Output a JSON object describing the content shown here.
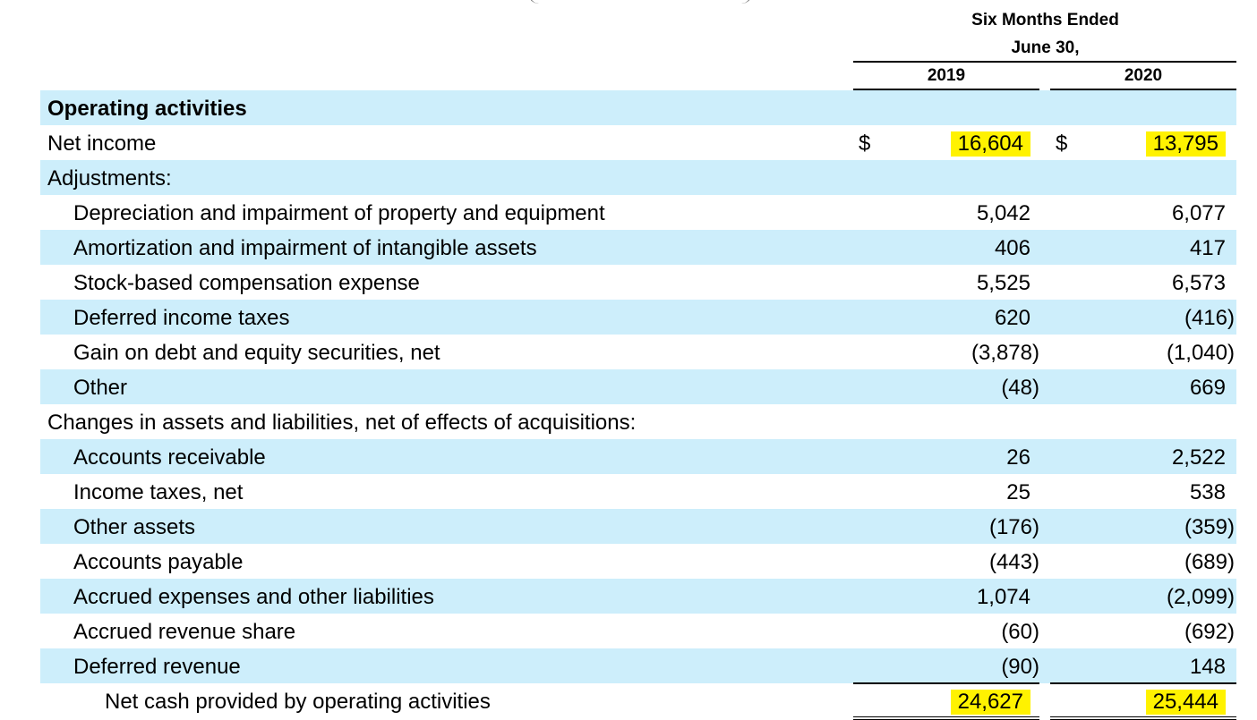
{
  "header": {
    "period_line1": "Six Months Ended",
    "period_line2": "June 30,",
    "years": [
      "2019",
      "2020"
    ]
  },
  "rows": [
    {
      "label": "Operating activities",
      "v2019": "",
      "v2020": "",
      "style": "section",
      "level": 0,
      "shaded": true
    },
    {
      "label": "Net income",
      "v2019": "16,604",
      "v2020": "13,795",
      "currency": "$",
      "level": 0,
      "shaded": false,
      "highlight": true
    },
    {
      "label": "Adjustments:",
      "v2019": "",
      "v2020": "",
      "level": 0,
      "shaded": true
    },
    {
      "label": "Depreciation and impairment of property and equipment",
      "v2019": "5,042",
      "v2020": "6,077",
      "level": 1,
      "shaded": false
    },
    {
      "label": "Amortization and impairment of intangible assets",
      "v2019": "406",
      "v2020": "417",
      "level": 1,
      "shaded": true
    },
    {
      "label": "Stock-based compensation expense",
      "v2019": "5,525",
      "v2020": "6,573",
      "level": 1,
      "shaded": false
    },
    {
      "label": "Deferred income taxes",
      "v2019": "620",
      "v2020": "(416)",
      "level": 1,
      "shaded": true
    },
    {
      "label": "Gain on debt and equity securities, net",
      "v2019": "(3,878)",
      "v2020": "(1,040)",
      "level": 1,
      "shaded": false
    },
    {
      "label": "Other",
      "v2019": "(48)",
      "v2020": "669",
      "level": 1,
      "shaded": true
    },
    {
      "label": "Changes in assets and liabilities, net of effects of acquisitions:",
      "v2019": "",
      "v2020": "",
      "level": 0,
      "shaded": false
    },
    {
      "label": "Accounts receivable",
      "v2019": "26",
      "v2020": "2,522",
      "level": 1,
      "shaded": true
    },
    {
      "label": "Income taxes, net",
      "v2019": "25",
      "v2020": "538",
      "level": 1,
      "shaded": false
    },
    {
      "label": "Other assets",
      "v2019": "(176)",
      "v2020": "(359)",
      "level": 1,
      "shaded": true
    },
    {
      "label": "Accounts payable",
      "v2019": "(443)",
      "v2020": "(689)",
      "level": 1,
      "shaded": false
    },
    {
      "label": "Accrued expenses and other liabilities",
      "v2019": "1,074",
      "v2020": "(2,099)",
      "level": 1,
      "shaded": true
    },
    {
      "label": "Accrued revenue share",
      "v2019": "(60)",
      "v2020": "(692)",
      "level": 1,
      "shaded": false
    },
    {
      "label": "Deferred revenue",
      "v2019": "(90)",
      "v2020": "148",
      "level": 1,
      "shaded": true
    },
    {
      "label": "Net cash provided by operating activities",
      "v2019": "24,627",
      "v2020": "25,444",
      "level": 2,
      "shaded": false,
      "highlight": true,
      "total": true
    }
  ],
  "colors": {
    "band": "#cdeefb",
    "highlight": "#fff200"
  }
}
